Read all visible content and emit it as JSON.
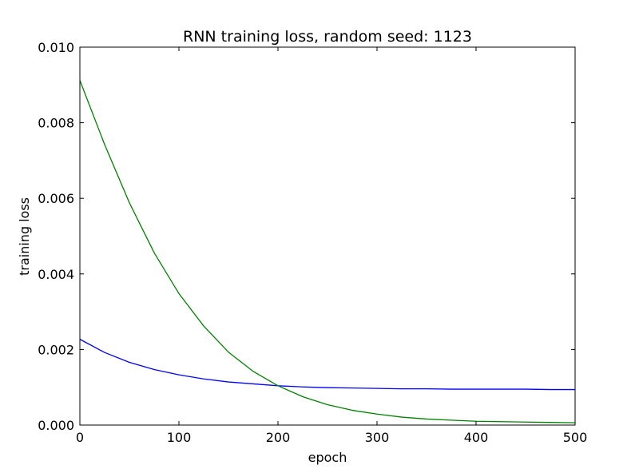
{
  "chart_data": {
    "type": "line",
    "title": "RNN training loss, random seed: 1123",
    "xlabel": "epoch",
    "ylabel": "training loss",
    "xlim": [
      0,
      500
    ],
    "ylim": [
      0.0,
      0.01
    ],
    "xticks": [
      0,
      100,
      200,
      300,
      400,
      500
    ],
    "xtick_labels": [
      "0",
      "100",
      "200",
      "300",
      "400",
      "500"
    ],
    "yticks": [
      0.0,
      0.002,
      0.004,
      0.006,
      0.008,
      0.01
    ],
    "ytick_labels": [
      "0.000",
      "0.002",
      "0.004",
      "0.006",
      "0.008",
      "0.010"
    ],
    "grid": false,
    "series": [
      {
        "color": "#0000ff",
        "x": [
          0,
          25,
          50,
          75,
          100,
          125,
          150,
          175,
          200,
          225,
          250,
          275,
          300,
          325,
          350,
          375,
          400,
          425,
          450,
          475,
          500
        ],
        "values": [
          0.00227,
          0.00192,
          0.00166,
          0.00147,
          0.00133,
          0.00122,
          0.00114,
          0.00109,
          0.00104,
          0.00101,
          0.00099,
          0.00098,
          0.00097,
          0.00096,
          0.00096,
          0.00095,
          0.00095,
          0.00095,
          0.00095,
          0.00094,
          0.00094
        ]
      },
      {
        "color": "#008000",
        "x": [
          0,
          25,
          50,
          75,
          100,
          125,
          150,
          175,
          200,
          225,
          250,
          275,
          300,
          325,
          350,
          375,
          400,
          425,
          450,
          475,
          500
        ],
        "values": [
          0.00912,
          0.00742,
          0.00588,
          0.00456,
          0.00348,
          0.00262,
          0.00193,
          0.00142,
          0.00104,
          0.00075,
          0.00054,
          0.00039,
          0.00029,
          0.00021,
          0.00016,
          0.00013,
          0.0001,
          9e-05,
          8e-05,
          7e-05,
          6e-05
        ]
      }
    ]
  }
}
